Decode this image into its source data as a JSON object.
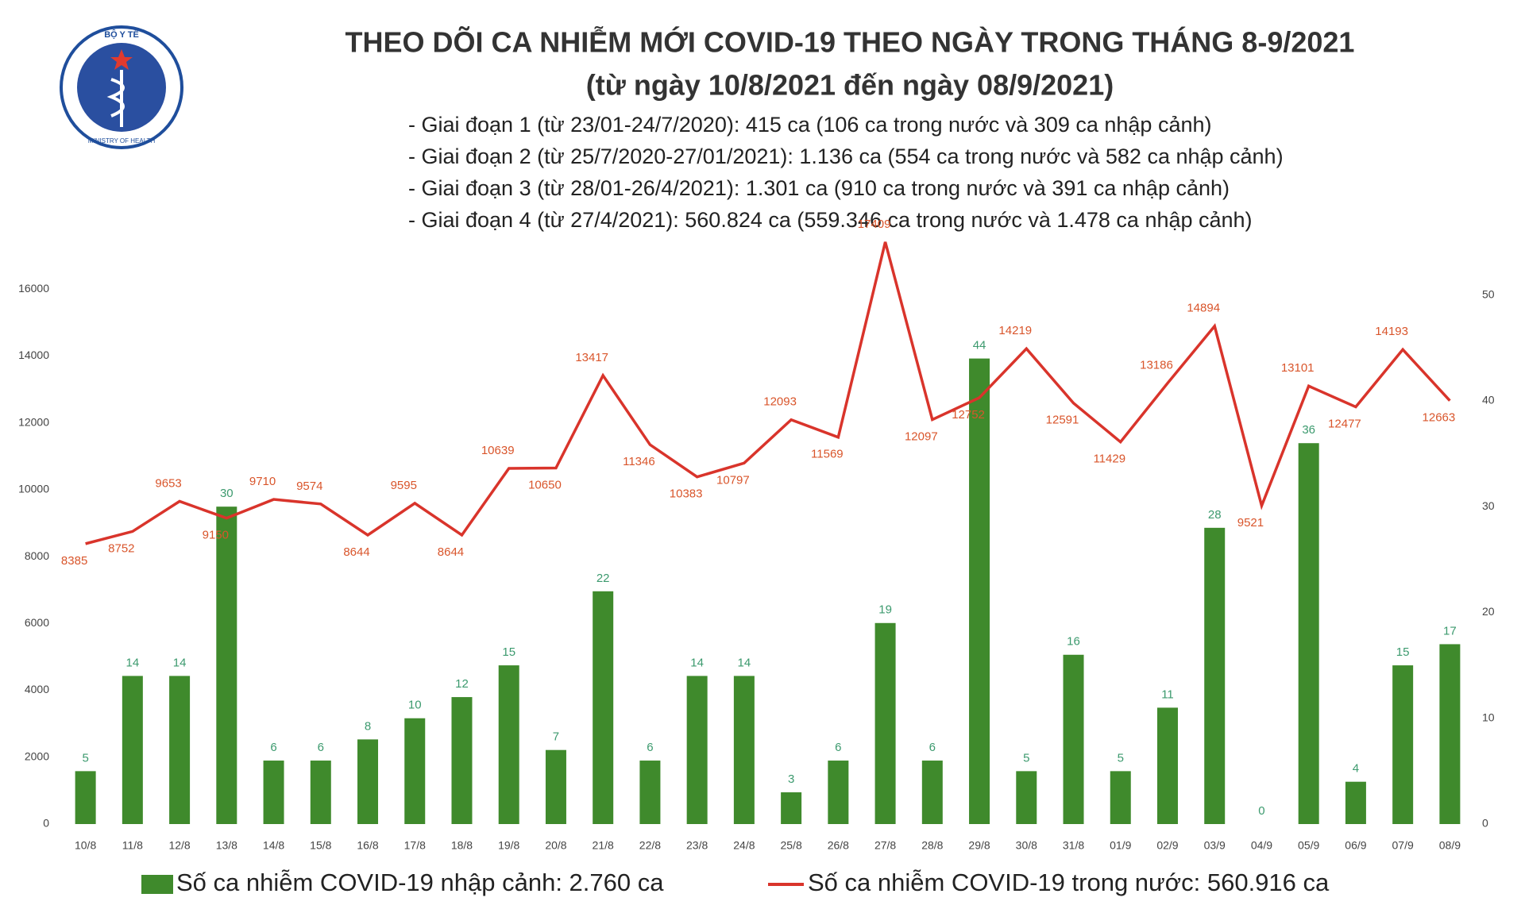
{
  "logo": {
    "top": "BỘ Y TẾ",
    "bottom": "MINISTRY OF HEALTH"
  },
  "chart_data": {
    "type": "bar-line",
    "title": "THEO DÕI CA NHIỄM MỚI COVID-19 THEO NGÀY TRONG THÁNG 8-9/2021",
    "subtitle": "(từ ngày 10/8/2021 đến ngày 08/9/2021)",
    "annotations": [
      "- Giai đoạn 1 (từ 23/01-24/7/2020): 415 ca (106 ca trong nước và 309 ca nhập cảnh)",
      "- Giai đoạn 2 (từ 25/7/2020-27/01/2021): 1.136 ca (554 ca trong nước và 582 ca nhập cảnh)",
      "- Giai đoạn 3 (từ 28/01-26/4/2021): 1.301 ca (910 ca trong nước và 391 ca nhập cảnh)",
      "- Giai đoạn 4 (từ 27/4/2021): 560.824 ca (559.346 ca trong nước và 1.478 ca nhập cảnh)"
    ],
    "categories": [
      "10/8",
      "11/8",
      "12/8",
      "13/8",
      "14/8",
      "15/8",
      "16/8",
      "17/8",
      "18/8",
      "19/8",
      "20/8",
      "21/8",
      "22/8",
      "23/8",
      "24/8",
      "25/8",
      "26/8",
      "27/8",
      "28/8",
      "29/8",
      "30/8",
      "31/8",
      "01/9",
      "02/9",
      "03/9",
      "04/9",
      "05/9",
      "06/9",
      "07/9",
      "08/9"
    ],
    "series": [
      {
        "name": "Số ca nhiễm COVID-19 nhập cảnh: 2.760 ca",
        "type": "bar",
        "axis": "y2",
        "color": "#3f8a2c",
        "values": [
          5,
          14,
          14,
          30,
          6,
          6,
          8,
          10,
          12,
          15,
          7,
          22,
          6,
          14,
          14,
          3,
          6,
          19,
          6,
          44,
          5,
          16,
          5,
          11,
          28,
          0,
          36,
          4,
          15,
          17
        ]
      },
      {
        "name": "Số ca nhiễm COVID-19 trong nước: 560.916 ca",
        "type": "line",
        "color": "#d9342b",
        "values": [
          8385,
          8752,
          9653,
          9150,
          9710,
          9574,
          8644,
          9595,
          8644,
          10639,
          10650,
          13417,
          11346,
          10383,
          10797,
          12093,
          11569,
          17409,
          12097,
          12752,
          14219,
          12591,
          11429,
          13186,
          14894,
          9521,
          13101,
          12477,
          14193,
          12663
        ]
      }
    ],
    "ylim": [
      0,
      17500
    ],
    "yticks": [
      0,
      2000,
      4000,
      6000,
      8000,
      10000,
      12000,
      14000,
      16000
    ],
    "y2lim": [
      0,
      55.3
    ],
    "y2ticks": [
      0,
      10,
      20,
      30,
      40,
      50
    ],
    "grid": false
  }
}
